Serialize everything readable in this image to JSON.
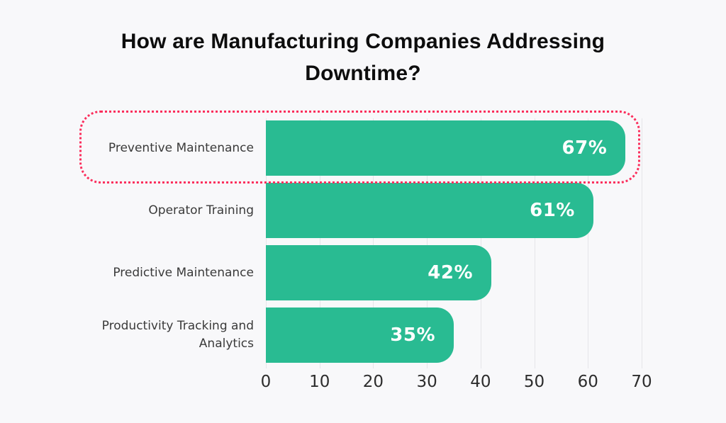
{
  "page": {
    "background_color": "#f8f8fa"
  },
  "chart_data": {
    "type": "bar",
    "orientation": "horizontal",
    "title": "How are Manufacturing Companies Addressing Downtime?",
    "categories": [
      "Preventive Maintenance",
      "Operator Training",
      "Predictive Maintenance",
      "Productivity Tracking and Analytics"
    ],
    "values": [
      67,
      61,
      42,
      35
    ],
    "value_labels": [
      "67%",
      "61%",
      "42%",
      "35%"
    ],
    "xlabel": "",
    "ylabel": "",
    "xlim": [
      0,
      70
    ],
    "x_ticks": [
      0,
      10,
      20,
      30,
      40,
      50,
      60,
      70
    ],
    "grid": true,
    "legend": "none",
    "highlight": {
      "index": 0,
      "category": "Preventive Maintenance",
      "style": "dotted-outline"
    },
    "colors": {
      "bar": "#29bb92",
      "value_text": "#ffffff",
      "highlight_border": "#fb2e5c",
      "gridline": "#e5e5e9",
      "background": "#f8f8fa",
      "title_text": "#0d0d0d",
      "category_text": "#3a3a3a",
      "tick_text": "#2d2d2d"
    }
  }
}
